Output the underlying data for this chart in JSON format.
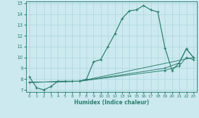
{
  "xlabel": "Humidex (Indice chaleur)",
  "ylabel": "",
  "xlim": [
    -0.5,
    23.5
  ],
  "ylim": [
    6.8,
    15.2
  ],
  "xticks": [
    0,
    1,
    2,
    3,
    4,
    5,
    6,
    7,
    8,
    9,
    10,
    11,
    12,
    13,
    14,
    15,
    16,
    17,
    18,
    19,
    20,
    21,
    22,
    23
  ],
  "yticks": [
    7,
    8,
    9,
    10,
    11,
    12,
    13,
    14,
    15
  ],
  "bg_color": "#cce9f0",
  "line_color": "#2d7f6e",
  "grid_color": "#b0d8e0",
  "series": [
    {
      "x": [
        0,
        1,
        2,
        3,
        4,
        5,
        6,
        7,
        8,
        9,
        10,
        11,
        12,
        13,
        14,
        15,
        16,
        17,
        18,
        19,
        20,
        21,
        22,
        23
      ],
      "y": [
        8.2,
        7.2,
        7.0,
        7.3,
        7.8,
        7.8,
        7.8,
        7.8,
        8.0,
        9.6,
        9.8,
        11.0,
        12.2,
        13.6,
        14.3,
        14.4,
        14.8,
        14.4,
        14.2,
        10.9,
        8.8,
        9.5,
        10.8,
        10.0
      ]
    },
    {
      "x": [
        0,
        7,
        23
      ],
      "y": [
        7.7,
        7.8,
        10.0
      ]
    },
    {
      "x": [
        0,
        7,
        19,
        21,
        22,
        23
      ],
      "y": [
        7.7,
        7.8,
        9.0,
        9.5,
        10.8,
        10.0
      ]
    },
    {
      "x": [
        0,
        7,
        19,
        21,
        22,
        23
      ],
      "y": [
        7.7,
        7.8,
        8.8,
        9.2,
        10.0,
        9.8
      ]
    }
  ]
}
